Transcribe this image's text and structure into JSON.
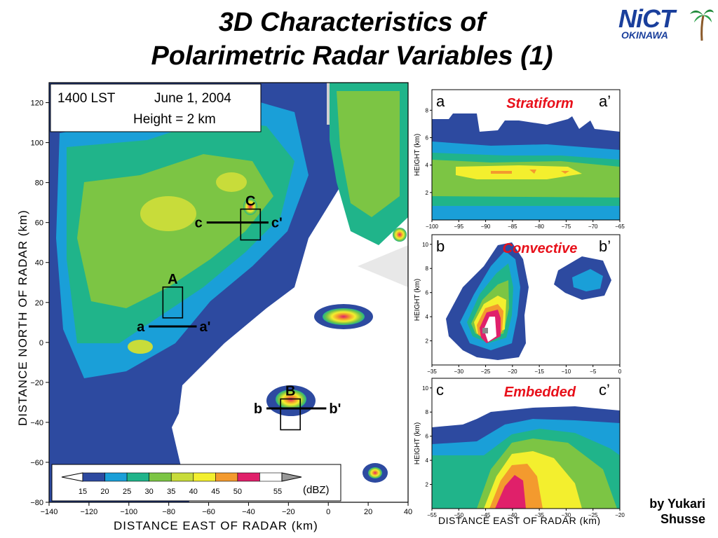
{
  "title_line1": "3D Characteristics of",
  "title_line2": "Polarimetric Radar Variables (1)",
  "logo": {
    "brand": "NiCT",
    "region": "OKINAWA",
    "icon": "palm-tree-icon"
  },
  "author_line1": "by Yukari",
  "author_line2": "Shusse",
  "chart_data": [
    {
      "type": "heatmap",
      "time_label": "1400 LST",
      "date_label": "June 1, 2004",
      "height_label": "Height = 2 km",
      "xlabel": "DISTANCE EAST OF RADAR (km)",
      "ylabel": "DISTANCE NORTH OF RADAR (km)",
      "xlim": [
        -140,
        40
      ],
      "ylim": [
        -80,
        130
      ],
      "xticks": [
        "-140",
        "-120",
        "-100",
        "-80",
        "-60",
        "-40",
        "-20",
        "0",
        "20",
        "40"
      ],
      "yticks": [
        "120",
        "100",
        "80",
        "60",
        "40",
        "20",
        "0",
        "-20",
        "-40",
        "-60",
        "-80"
      ],
      "colorbar": {
        "label": "(dBZ)",
        "ticks": [
          "15",
          "20",
          "25",
          "30",
          "35",
          "40",
          "45",
          "50",
          "55"
        ],
        "colors": [
          "#2d4aa0",
          "#1a9fd8",
          "#20b48a",
          "#7cc544",
          "#c8dc3a",
          "#f3ef2e",
          "#f39a2e",
          "#e0206a",
          "#ffffff"
        ]
      },
      "boxes": [
        {
          "label": "A",
          "line_start": "a",
          "line_end": "a'",
          "x": -78,
          "y": 20,
          "line_from": -90,
          "line_to": -66,
          "line_y": 8
        },
        {
          "label": "B",
          "line_start": "b",
          "line_end": "b'",
          "x": -19,
          "y": -36,
          "line_from": -31,
          "line_to": -1,
          "line_y": -33
        },
        {
          "label": "C",
          "line_start": "c",
          "line_end": "c'",
          "x": -39,
          "y": 59,
          "line_from": -61,
          "line_to": -30,
          "line_y": 60
        }
      ]
    },
    {
      "type": "heatmap",
      "left_label": "a",
      "right_label": "a’",
      "annotation": "Stratiform",
      "ylabel": "HEIGHT (km)",
      "xlim": [
        -100,
        -65
      ],
      "xticks": [
        "-100",
        "-95",
        "-90",
        "-85",
        "-80",
        "-75",
        "-70",
        "-65"
      ],
      "yticks": [
        "2",
        "4",
        "6",
        "8"
      ]
    },
    {
      "type": "heatmap",
      "left_label": "b",
      "right_label": "b’",
      "annotation": "Convective",
      "ylabel": "HEIGHT (km)",
      "xlim": [
        -35,
        0
      ],
      "xticks": [
        "-35",
        "-30",
        "-25",
        "-20",
        "-15",
        "-10",
        "-5",
        "0"
      ],
      "yticks": [
        "2",
        "4",
        "6",
        "8",
        "10"
      ]
    },
    {
      "type": "heatmap",
      "left_label": "c",
      "right_label": "c’",
      "annotation": "Embedded",
      "ylabel": "HEIGHT (km)",
      "xlabel": "DISTANCE EAST OF RADAR (km)",
      "xlim": [
        -55,
        -20
      ],
      "xticks": [
        "-55",
        "-50",
        "-45",
        "-40",
        "-35",
        "-30",
        "-25",
        "-20"
      ],
      "yticks": [
        "2",
        "4",
        "6",
        "8",
        "10"
      ]
    }
  ]
}
